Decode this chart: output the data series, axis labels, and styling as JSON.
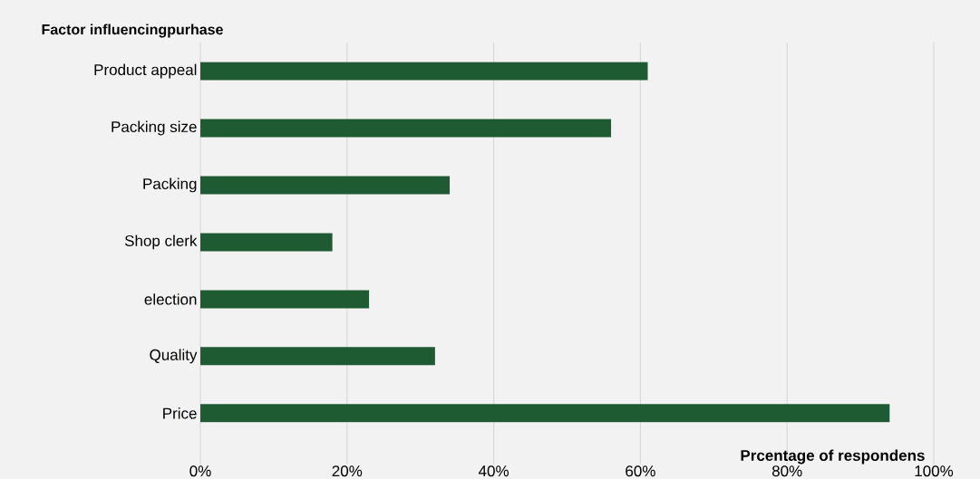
{
  "chart_data": {
    "type": "bar",
    "orientation": "horizontal",
    "ylabel": "Factor influencingpurhase",
    "xlabel": "Prcentage of respondens",
    "categories": [
      "Product appeal",
      "Packing size",
      "Packing",
      "Shop clerk",
      "election",
      "Quality",
      "Price"
    ],
    "values": [
      61,
      56,
      34,
      18,
      23,
      32,
      94
    ],
    "color": "#1e5b33",
    "xlim": [
      0,
      100
    ],
    "xticks": [
      {
        "value": 0,
        "label": "0%"
      },
      {
        "value": 20,
        "label": "20%"
      },
      {
        "value": 40,
        "label": "40%"
      },
      {
        "value": 60,
        "label": "60%"
      },
      {
        "value": 80,
        "label": "80%"
      },
      {
        "value": 100,
        "label": "100%"
      }
    ],
    "grid": "x"
  }
}
